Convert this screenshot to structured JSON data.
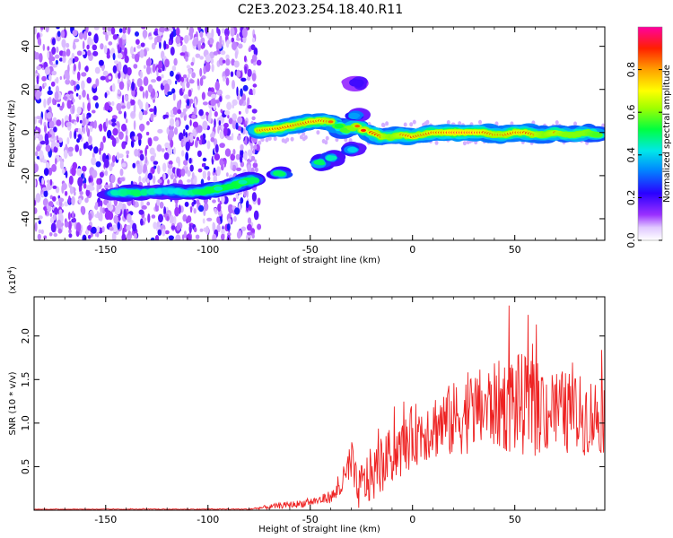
{
  "title": "C2E3.2023.254.18.40.R11",
  "chart_data": [
    {
      "type": "heatmap",
      "xlabel": "Height of straight line (km)",
      "ylabel": "Frequency (Hz)",
      "xlim": [
        -185,
        94
      ],
      "ylim": [
        -50,
        49
      ],
      "x_ticks": [
        -150,
        -100,
        -50,
        0,
        50
      ],
      "x_tick_labels": [
        "-150",
        "-100",
        "-50",
        "0",
        "50"
      ],
      "y_ticks": [
        -40,
        -20,
        0,
        20,
        40
      ],
      "y_tick_labels": [
        "-40",
        "-20",
        "0",
        "20",
        "40"
      ],
      "noise_region_x": [
        -185,
        -75
      ],
      "ridge": [
        {
          "x": -145,
          "y": -28,
          "a": 0.45
        },
        {
          "x": -135,
          "y": -28,
          "a": 0.5
        },
        {
          "x": -120,
          "y": -27,
          "a": 0.4
        },
        {
          "x": -110,
          "y": -28,
          "a": 0.45
        },
        {
          "x": -100,
          "y": -27,
          "a": 0.55
        },
        {
          "x": -95,
          "y": -26,
          "a": 0.6
        },
        {
          "x": -88,
          "y": -25,
          "a": 0.55
        },
        {
          "x": -83,
          "y": -23,
          "a": 0.6
        },
        {
          "x": -78,
          "y": -22,
          "a": 0.5
        },
        {
          "x": -75,
          "y": 1,
          "a": 0.85
        },
        {
          "x": -70,
          "y": 1.5,
          "a": 0.9
        },
        {
          "x": -65,
          "y": 2,
          "a": 0.9
        },
        {
          "x": -60,
          "y": 3,
          "a": 0.9
        },
        {
          "x": -55,
          "y": 4,
          "a": 0.85
        },
        {
          "x": -50,
          "y": 5,
          "a": 0.9
        },
        {
          "x": -45,
          "y": 5.5,
          "a": 0.9
        },
        {
          "x": -40,
          "y": 5,
          "a": 0.85
        },
        {
          "x": -36,
          "y": 3,
          "a": 0.7
        },
        {
          "x": -33,
          "y": 1,
          "a": 0.75
        },
        {
          "x": -30,
          "y": 2,
          "a": 0.8
        },
        {
          "x": -27,
          "y": 3,
          "a": 0.85
        },
        {
          "x": -24,
          "y": 1,
          "a": 0.9
        },
        {
          "x": -20,
          "y": 0,
          "a": 0.9
        },
        {
          "x": -15,
          "y": -2,
          "a": 0.85
        },
        {
          "x": -10,
          "y": -2,
          "a": 0.8
        },
        {
          "x": -5,
          "y": -1,
          "a": 0.85
        },
        {
          "x": 0,
          "y": -2,
          "a": 0.9
        },
        {
          "x": 5,
          "y": -1,
          "a": 0.85
        },
        {
          "x": 10,
          "y": 0,
          "a": 0.9
        },
        {
          "x": 15,
          "y": 0,
          "a": 0.9
        },
        {
          "x": 20,
          "y": 0,
          "a": 0.95
        },
        {
          "x": 25,
          "y": 0,
          "a": 0.95
        },
        {
          "x": 30,
          "y": 0,
          "a": 0.95
        },
        {
          "x": 35,
          "y": 0,
          "a": 0.9
        },
        {
          "x": 40,
          "y": -1,
          "a": 0.85
        },
        {
          "x": 45,
          "y": -1,
          "a": 0.85
        },
        {
          "x": 50,
          "y": 0,
          "a": 0.9
        },
        {
          "x": 55,
          "y": 0,
          "a": 0.9
        },
        {
          "x": 60,
          "y": -1,
          "a": 0.85
        },
        {
          "x": 65,
          "y": -1,
          "a": 0.8
        },
        {
          "x": 70,
          "y": 0,
          "a": 0.85
        },
        {
          "x": 75,
          "y": -1,
          "a": 0.8
        },
        {
          "x": 80,
          "y": -1,
          "a": 0.8
        },
        {
          "x": 85,
          "y": 0,
          "a": 0.8
        },
        {
          "x": 90,
          "y": -1,
          "a": 0.75
        }
      ],
      "side_features": [
        {
          "x": -65,
          "y": -19,
          "a": 0.5
        },
        {
          "x": -45,
          "y": -14,
          "a": 0.5
        },
        {
          "x": -40,
          "y": -12,
          "a": 0.45
        },
        {
          "x": -30,
          "y": -8,
          "a": 0.4
        },
        {
          "x": -28,
          "y": 8,
          "a": 0.35
        },
        {
          "x": -27,
          "y": 23,
          "a": 0.2
        }
      ]
    },
    {
      "type": "colorbar",
      "label": "Normalized spectral amplitude",
      "range": [
        0.0,
        1.0
      ],
      "ticks": [
        0.0,
        0.2,
        0.4,
        0.6,
        0.8
      ],
      "tick_labels": [
        "0.0",
        "0.2",
        "0.4",
        "0.6",
        "0.8"
      ]
    },
    {
      "type": "line",
      "xlabel": "Height of straight line (km)",
      "ylabel": "SNR (10 * v/v)",
      "y_multiplier": "(x10",
      "y_multiplier_exp": "4",
      "y_multiplier_close": ")",
      "xlim": [
        -185,
        94
      ],
      "ylim": [
        0,
        2.45
      ],
      "x_ticks": [
        -150,
        -100,
        -50,
        0,
        50
      ],
      "x_tick_labels": [
        "-150",
        "-100",
        "-50",
        "0",
        "50"
      ],
      "y_ticks": [
        0.5,
        1.0,
        1.5,
        2.0
      ],
      "y_tick_labels": [
        "0.5",
        "1.0",
        "1.5",
        "2.0"
      ],
      "color": "#ee2222",
      "envelope": {
        "x": [
          -185,
          -80,
          -70,
          -55,
          -45,
          -38,
          -33,
          -30,
          -27,
          -25,
          -20,
          -15,
          -10,
          -5,
          0,
          10,
          20,
          30,
          40,
          50,
          60,
          70,
          80,
          94
        ],
        "base": [
          0.01,
          0.01,
          0.03,
          0.06,
          0.1,
          0.15,
          0.3,
          0.45,
          0.15,
          0.2,
          0.3,
          0.4,
          0.55,
          0.6,
          0.75,
          0.85,
          0.9,
          1.0,
          1.05,
          1.05,
          1.0,
          1.0,
          0.95,
          0.95
        ],
        "amp": [
          0.005,
          0.01,
          0.05,
          0.08,
          0.1,
          0.15,
          0.35,
          0.6,
          0.4,
          0.5,
          0.6,
          0.55,
          0.6,
          0.6,
          0.65,
          0.7,
          0.8,
          0.85,
          0.9,
          1.1,
          1.0,
          0.9,
          0.85,
          0.8
        ]
      }
    }
  ]
}
